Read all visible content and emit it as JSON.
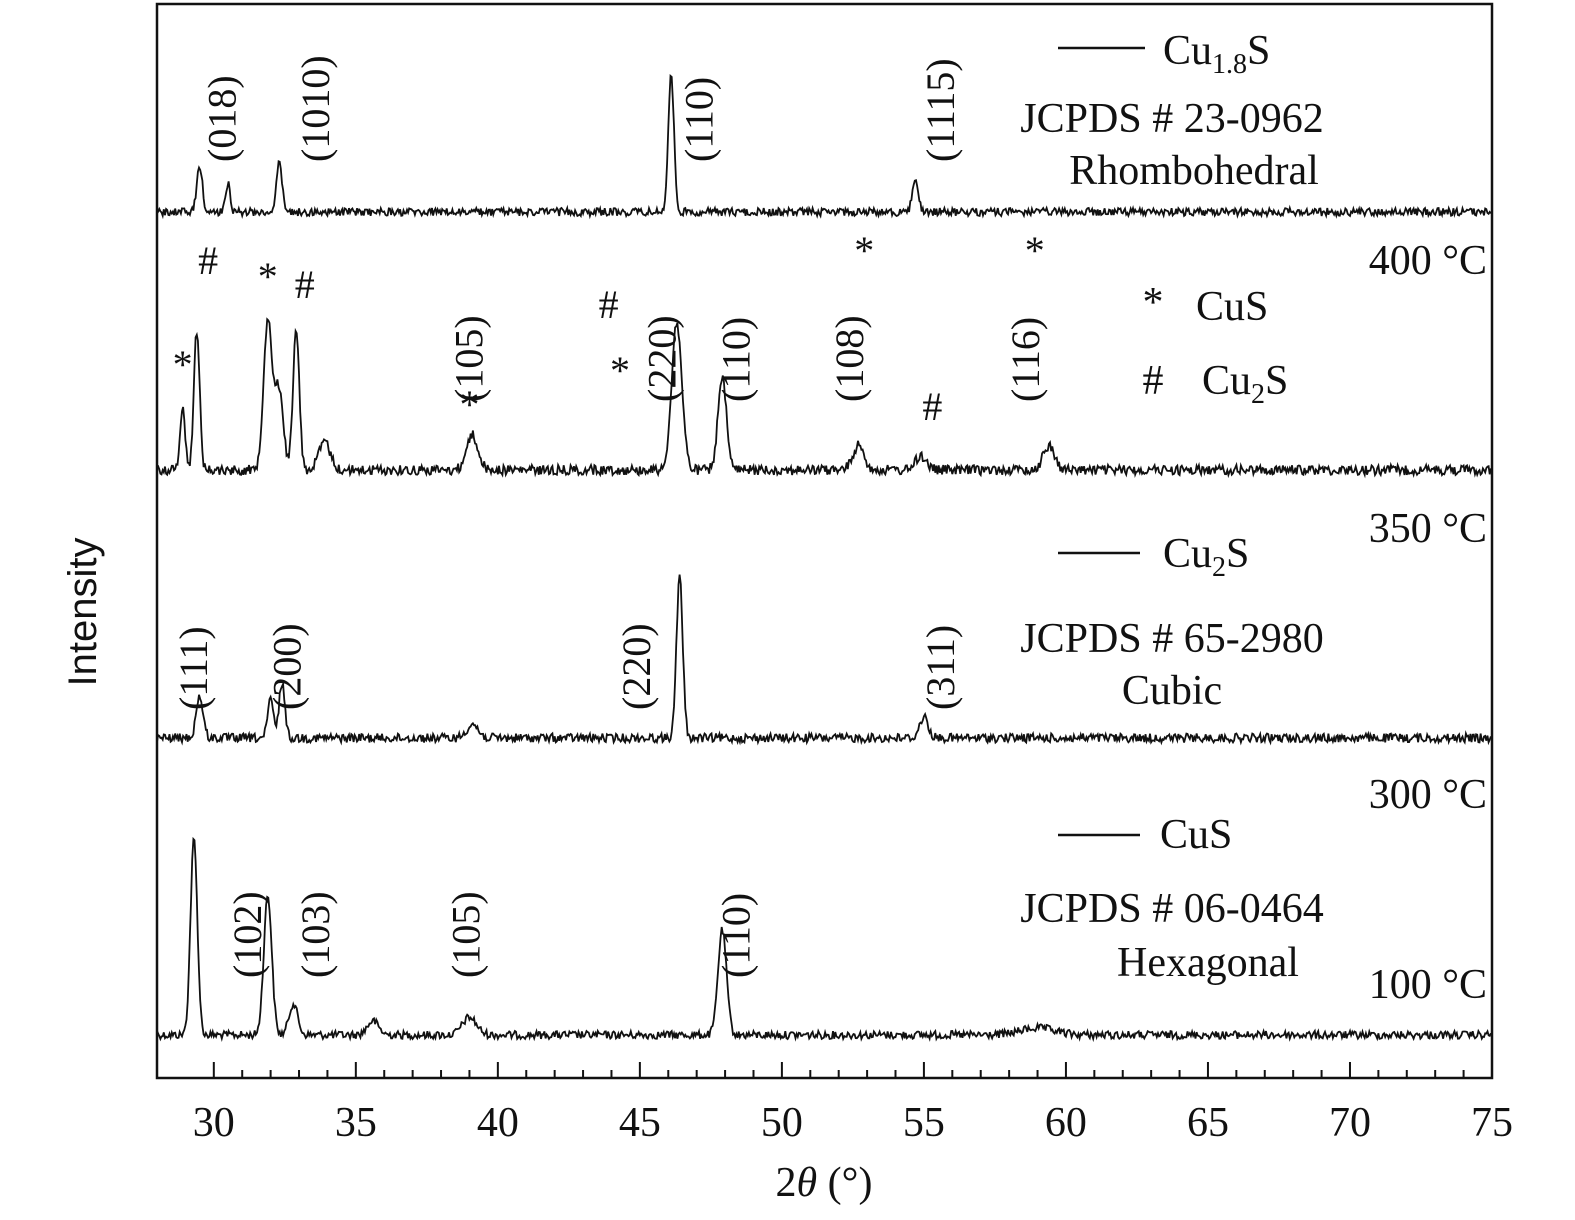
{
  "chart_data": {
    "type": "line",
    "xlabel": "2θ (°)",
    "xlabel_italic": "θ",
    "ylabel": "Intensity",
    "xlim": [
      28,
      75
    ],
    "xticks": [
      30,
      35,
      40,
      45,
      50,
      55,
      60,
      65,
      70,
      75
    ],
    "yticks_shown": false,
    "series": [
      {
        "name": "100 °C",
        "label": "100 °C",
        "baseline": 0.0,
        "peaks": [
          {
            "x": 29.3,
            "h": 0.56,
            "w": 0.12
          },
          {
            "x": 31.9,
            "h": 0.4,
            "w": 0.14
          },
          {
            "x": 32.8,
            "h": 0.09,
            "w": 0.15
          },
          {
            "x": 35.6,
            "h": 0.04,
            "w": 0.2
          },
          {
            "x": 39.0,
            "h": 0.05,
            "w": 0.25
          },
          {
            "x": 47.9,
            "h": 0.3,
            "w": 0.15
          },
          {
            "x": 59.0,
            "h": 0.02,
            "w": 0.6
          }
        ]
      },
      {
        "name": "300 °C",
        "label": "300 °C",
        "baseline": 0.0,
        "peaks": [
          {
            "x": 29.5,
            "h": 0.12,
            "w": 0.12
          },
          {
            "x": 32.0,
            "h": 0.11,
            "w": 0.1
          },
          {
            "x": 32.4,
            "h": 0.16,
            "w": 0.1
          },
          {
            "x": 39.1,
            "h": 0.04,
            "w": 0.2
          },
          {
            "x": 46.4,
            "h": 0.46,
            "w": 0.11
          },
          {
            "x": 55.0,
            "h": 0.06,
            "w": 0.15
          }
        ]
      },
      {
        "name": "350 °C",
        "label": "350 °C",
        "baseline": 0.0,
        "peaks": [
          {
            "x": 28.9,
            "h": 0.18,
            "w": 0.09
          },
          {
            "x": 29.4,
            "h": 0.4,
            "w": 0.1
          },
          {
            "x": 31.9,
            "h": 0.43,
            "w": 0.15
          },
          {
            "x": 32.3,
            "h": 0.23,
            "w": 0.15
          },
          {
            "x": 32.9,
            "h": 0.4,
            "w": 0.11
          },
          {
            "x": 33.9,
            "h": 0.08,
            "w": 0.2
          },
          {
            "x": 39.1,
            "h": 0.1,
            "w": 0.2
          },
          {
            "x": 46.3,
            "h": 0.42,
            "w": 0.18
          },
          {
            "x": 47.9,
            "h": 0.26,
            "w": 0.15
          },
          {
            "x": 52.7,
            "h": 0.07,
            "w": 0.2
          },
          {
            "x": 54.9,
            "h": 0.04,
            "w": 0.2
          },
          {
            "x": 59.4,
            "h": 0.07,
            "w": 0.2
          }
        ]
      },
      {
        "name": "400 °C",
        "label": "400 °C",
        "baseline": 0.0,
        "peaks": [
          {
            "x": 29.5,
            "h": 0.13,
            "w": 0.1
          },
          {
            "x": 30.5,
            "h": 0.08,
            "w": 0.08
          },
          {
            "x": 32.3,
            "h": 0.14,
            "w": 0.1
          },
          {
            "x": 46.1,
            "h": 0.39,
            "w": 0.1
          },
          {
            "x": 54.7,
            "h": 0.1,
            "w": 0.1
          }
        ]
      }
    ],
    "annotations": [
      {
        "panel": 0,
        "x": 31.2,
        "text": "(102)",
        "rotated": true
      },
      {
        "panel": 0,
        "x": 33.6,
        "text": "(103)",
        "rotated": true
      },
      {
        "panel": 0,
        "x": 38.9,
        "text": "(105)",
        "rotated": true
      },
      {
        "panel": 0,
        "x": 48.4,
        "text": "(110)",
        "rotated": true
      },
      {
        "panel": 1,
        "x": 29.3,
        "text": "(111)",
        "rotated": true
      },
      {
        "panel": 1,
        "x": 32.6,
        "text": "(200)",
        "rotated": true
      },
      {
        "panel": 1,
        "x": 44.9,
        "text": "(220)",
        "rotated": true
      },
      {
        "panel": 1,
        "x": 55.6,
        "text": "(311)",
        "rotated": true
      },
      {
        "panel": 2,
        "x": 39.0,
        "text": "(105)",
        "rotated": true
      },
      {
        "panel": 2,
        "x": 45.8,
        "text": "(220)",
        "rotated": true
      },
      {
        "panel": 2,
        "x": 48.4,
        "text": "(110)",
        "rotated": true
      },
      {
        "panel": 2,
        "x": 52.4,
        "text": "(108)",
        "rotated": true
      },
      {
        "panel": 2,
        "x": 58.6,
        "text": "(116)",
        "rotated": true
      },
      {
        "panel": 3,
        "x": 30.3,
        "text": "(018)",
        "rotated": true
      },
      {
        "panel": 3,
        "x": 33.6,
        "text": "(1010)",
        "rotated": true
      },
      {
        "panel": 3,
        "x": 47.1,
        "text": "(110)",
        "rotated": true
      },
      {
        "panel": 3,
        "x": 55.6,
        "text": "(1115)",
        "rotated": true
      }
    ],
    "markers": [
      {
        "x": 28.9,
        "text": "*"
      },
      {
        "x": 29.8,
        "text": "#"
      },
      {
        "x": 31.9,
        "text": "*"
      },
      {
        "x": 33.2,
        "text": "#"
      },
      {
        "x": 39.0,
        "text": "*"
      },
      {
        "x": 43.9,
        "text": "#"
      },
      {
        "x": 44.3,
        "text": "*"
      },
      {
        "x": 52.9,
        "text": "*"
      },
      {
        "x": 55.3,
        "text": "#"
      },
      {
        "x": 58.9,
        "text": "*"
      }
    ],
    "legends": [
      {
        "panel": 0,
        "phase": "CuS",
        "jcpds": "JCPDS # 06-0464",
        "system": "Hexagonal"
      },
      {
        "panel": 1,
        "phase_main": "Cu",
        "phase_sub": "2",
        "phase_end": "S",
        "jcpds": "JCPDS # 65-2980",
        "system": "Cubic"
      },
      {
        "panel": 2,
        "marker_legend": [
          {
            "symbol": "*",
            "phase": "CuS"
          },
          {
            "symbol": "#",
            "phase_main": "Cu",
            "phase_sub": "2",
            "phase_end": "S"
          }
        ]
      },
      {
        "panel": 3,
        "phase_main": "Cu",
        "phase_sub": "1.8",
        "phase_end": "S",
        "jcpds": "JCPDS # 23-0962",
        "system": "Rhombohedral"
      }
    ]
  }
}
